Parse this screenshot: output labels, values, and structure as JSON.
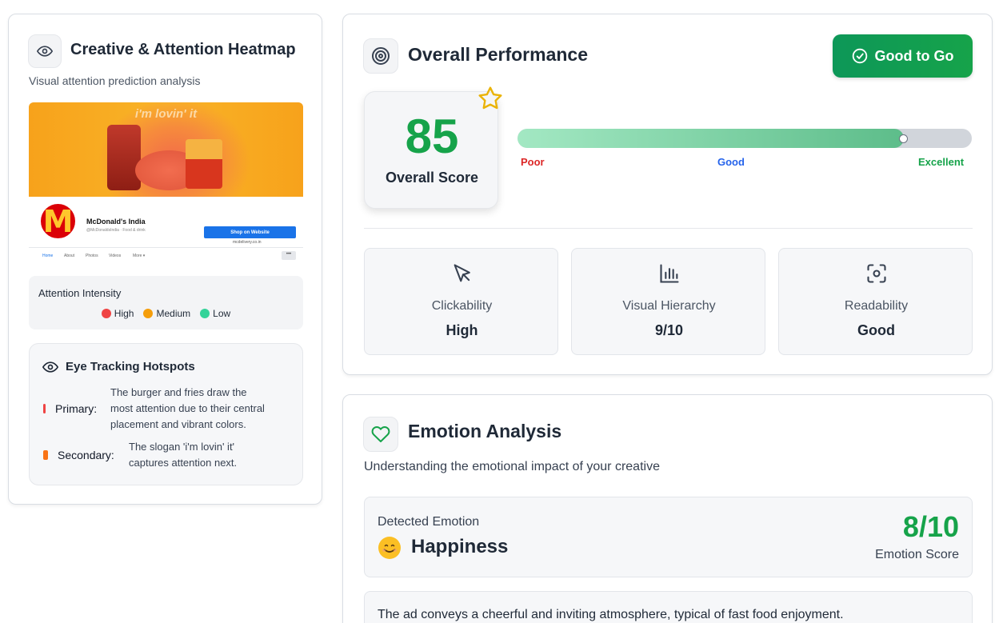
{
  "heatmap_card": {
    "title": "Creative & Attention Heatmap",
    "subtitle": "Visual attention prediction analysis",
    "creative": {
      "slogan": "i'm lovin' it",
      "page_name": "McDonald's India",
      "page_handle": "@McDonaldsIndia · Food & drink",
      "shop_button": "Shop on Website",
      "site_link": "mcdelivery.co.in",
      "nav": [
        "Home",
        "About",
        "Photos",
        "Videos",
        "More ▾"
      ],
      "more_button": "•••"
    },
    "intensity": {
      "title": "Attention Intensity",
      "legend": [
        {
          "label": "High",
          "color": "#ef4444"
        },
        {
          "label": "Medium",
          "color": "#f59e0b"
        },
        {
          "label": "Low",
          "color": "#34d399"
        }
      ]
    },
    "hotspots": {
      "title": "Eye Tracking Hotspots",
      "items": [
        {
          "label": "Primary:",
          "color": "#ef4444",
          "text_lines": [
            "The burger and fries draw the",
            "most attention due to their central",
            "placement and vibrant colors."
          ]
        },
        {
          "label": "Secondary:",
          "color": "#f97316",
          "text_lines": [
            "The slogan 'i'm lovin' it'",
            "captures attention next."
          ]
        }
      ]
    }
  },
  "performance": {
    "title": "Overall Performance",
    "status_button": "Good to Go",
    "score": "85",
    "score_label": "Overall Score",
    "score_fraction": 0.85,
    "scale": {
      "poor": "Poor",
      "good": "Good",
      "excellent": "Excellent"
    },
    "metrics": [
      {
        "label": "Clickability",
        "value": "High",
        "icon": "cursor-icon"
      },
      {
        "label": "Visual Hierarchy",
        "value": "9/10",
        "icon": "bar-chart-icon"
      },
      {
        "label": "Readability",
        "value": "Good",
        "icon": "focus-icon"
      }
    ],
    "colors": {
      "accent": "#16a34a",
      "poor": "#dc2626",
      "good": "#2563eb",
      "excellent": "#16a34a"
    }
  },
  "emotion": {
    "title": "Emotion Analysis",
    "subtitle": "Understanding the emotional impact of your creative",
    "detected_label": "Detected Emotion",
    "emotion": "Happiness",
    "score": "8/10",
    "score_label": "Emotion Score",
    "description": "The ad conveys a cheerful and inviting atmosphere, typical of fast food enjoyment."
  }
}
